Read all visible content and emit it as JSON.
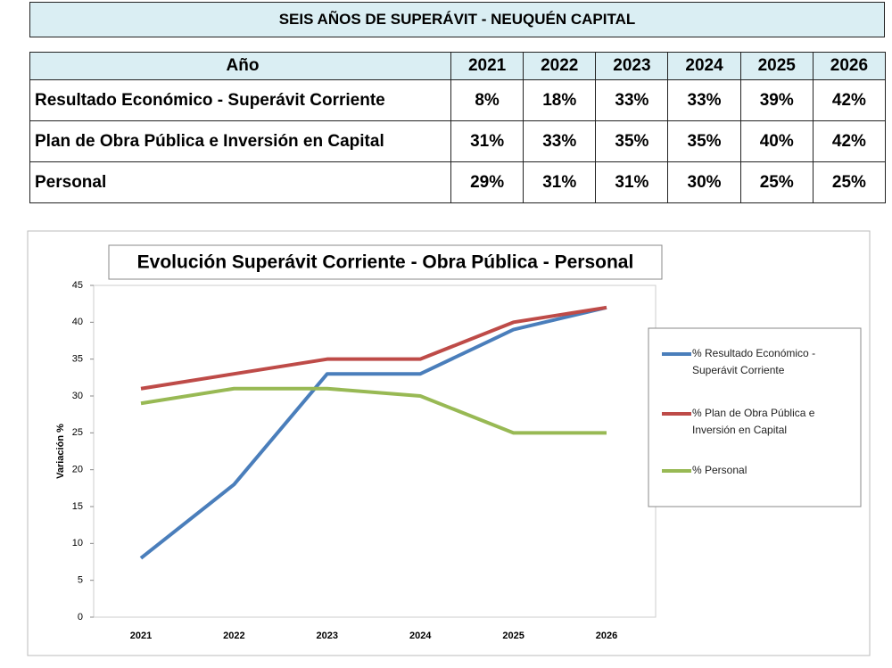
{
  "title": "SEIS AÑOS DE SUPERÁVIT - NEUQUÉN CAPITAL",
  "table": {
    "header": [
      "Año",
      "2021",
      "2022",
      "2023",
      "2024",
      "2025",
      "2026"
    ],
    "rows": [
      [
        "Resultado Económico - Superávit Corriente",
        "8%",
        "18%",
        "33%",
        "33%",
        "39%",
        "42%"
      ],
      [
        "Plan de Obra Pública e Inversión en Capital",
        "31%",
        "33%",
        "35%",
        "35%",
        "40%",
        "42%"
      ],
      [
        "Personal",
        "29%",
        "31%",
        "31%",
        "30%",
        "25%",
        "25%"
      ]
    ]
  },
  "chart_data": {
    "type": "line",
    "title": "Evolución Superávit Corriente - Obra Pública - Personal",
    "y_label": "Variación %",
    "categories": [
      "2021",
      "2022",
      "2023",
      "2024",
      "2025",
      "2026"
    ],
    "series": [
      {
        "name": "% Resultado Económico - Superávit Corriente",
        "color": "#4a7ebb",
        "values": [
          8,
          18,
          33,
          33,
          39,
          42
        ]
      },
      {
        "name": "% Plan de Obra Pública e Inversión en Capital",
        "color": "#be4b48",
        "values": [
          31,
          33,
          35,
          35,
          40,
          42
        ]
      },
      {
        "name": "% Personal",
        "color": "#98b954",
        "values": [
          29,
          31,
          31,
          30,
          25,
          25
        ]
      }
    ],
    "ylim": [
      0,
      45
    ],
    "yticks": [
      0,
      5,
      10,
      15,
      20,
      25,
      30,
      35,
      40,
      45
    ],
    "legend": "right"
  }
}
